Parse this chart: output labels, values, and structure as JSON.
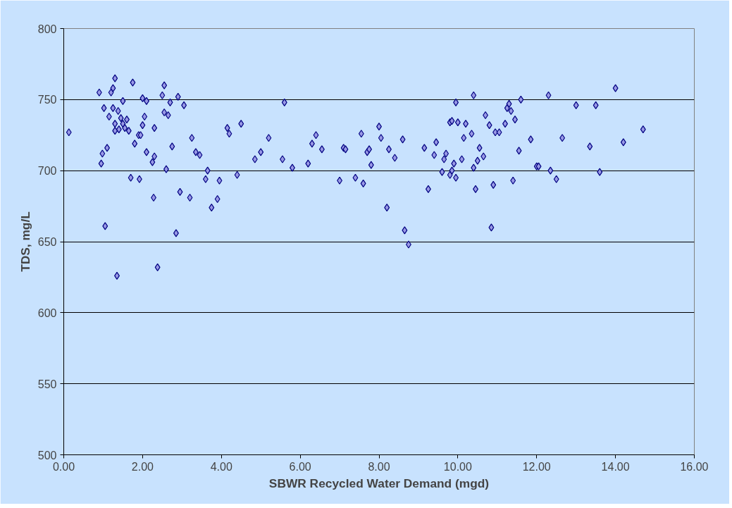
{
  "chart_data": {
    "type": "scatter",
    "xlabel": "SBWR Recycled Water Demand (mgd)",
    "ylabel": "TDS, mg/L",
    "marker": "diamond",
    "grid": "y",
    "xlim": [
      0,
      16
    ],
    "ylim": [
      500,
      800
    ],
    "xticks": [
      {
        "value": 0,
        "label": "0.00"
      },
      {
        "value": 2,
        "label": "2.00"
      },
      {
        "value": 4,
        "label": "4.00"
      },
      {
        "value": 6,
        "label": "6.00"
      },
      {
        "value": 8,
        "label": "8.00"
      },
      {
        "value": 10,
        "label": "10.00"
      },
      {
        "value": 12,
        "label": "12.00"
      },
      {
        "value": 14,
        "label": "14.00"
      },
      {
        "value": 16,
        "label": "16.00"
      }
    ],
    "yticks": [
      500,
      550,
      600,
      650,
      700,
      750,
      800
    ],
    "series": [
      {
        "color": "#9999e6",
        "x": [
          0.13,
          0.9,
          0.95,
          0.98,
          1.02,
          1.05,
          1.1,
          1.15,
          1.2,
          1.25,
          1.25,
          1.3,
          1.3,
          1.3,
          1.35,
          1.38,
          1.4,
          1.45,
          1.5,
          1.5,
          1.55,
          1.6,
          1.65,
          1.7,
          1.75,
          1.8,
          1.9,
          1.92,
          1.95,
          2.0,
          2.0,
          2.05,
          2.1,
          2.1,
          2.25,
          2.28,
          2.3,
          2.3,
          2.38,
          2.5,
          2.55,
          2.55,
          2.6,
          2.65,
          2.7,
          2.75,
          2.85,
          2.9,
          2.95,
          3.05,
          3.2,
          3.25,
          3.35,
          3.45,
          3.6,
          3.65,
          3.75,
          3.9,
          3.95,
          4.15,
          4.2,
          4.4,
          4.5,
          4.85,
          5.0,
          5.2,
          5.55,
          5.6,
          5.8,
          6.2,
          6.3,
          6.4,
          6.55,
          7.0,
          7.1,
          7.15,
          7.4,
          7.55,
          7.6,
          7.7,
          7.75,
          7.8,
          8.0,
          8.05,
          8.2,
          8.25,
          8.4,
          8.6,
          8.65,
          8.75,
          9.15,
          9.25,
          9.4,
          9.45,
          9.6,
          9.65,
          9.7,
          9.8,
          9.8,
          9.85,
          9.85,
          9.9,
          9.95,
          9.95,
          10.0,
          10.1,
          10.15,
          10.2,
          10.35,
          10.4,
          10.4,
          10.45,
          10.5,
          10.55,
          10.65,
          10.7,
          10.8,
          10.85,
          10.9,
          10.95,
          11.05,
          11.2,
          11.25,
          11.3,
          11.35,
          11.4,
          11.45,
          11.55,
          11.6,
          11.85,
          12.0,
          12.05,
          12.3,
          12.35,
          12.5,
          12.65,
          13.0,
          13.35,
          13.5,
          13.6,
          14.0,
          14.2,
          14.7
        ],
        "values": [
          727,
          755,
          705,
          712,
          744,
          661,
          716,
          738,
          755,
          758,
          744,
          765,
          733,
          728,
          626,
          742,
          729,
          737,
          749,
          733,
          730,
          736,
          728,
          695,
          762,
          719,
          725,
          694,
          725,
          751,
          732,
          738,
          749,
          713,
          706,
          681,
          710,
          730,
          632,
          753,
          760,
          741,
          701,
          739,
          748,
          717,
          656,
          752,
          685,
          746,
          681,
          723,
          713,
          711,
          694,
          700,
          674,
          680,
          693,
          730,
          726,
          697,
          733,
          708,
          713,
          723,
          708,
          748,
          702,
          705,
          719,
          725,
          715,
          693,
          716,
          715,
          695,
          726,
          691,
          713,
          715,
          704,
          731,
          723,
          674,
          715,
          709,
          722,
          658,
          648,
          716,
          687,
          711,
          720,
          699,
          708,
          712,
          734,
          697,
          735,
          700,
          705,
          695,
          748,
          734,
          708,
          723,
          733,
          726,
          753,
          702,
          687,
          707,
          716,
          710,
          739,
          732,
          660,
          690,
          727,
          727,
          733,
          744,
          747,
          742,
          693,
          736,
          714,
          750,
          722,
          703,
          703,
          753,
          700,
          694,
          723,
          746,
          717,
          746,
          699,
          758,
          720,
          729
        ]
      }
    ]
  }
}
